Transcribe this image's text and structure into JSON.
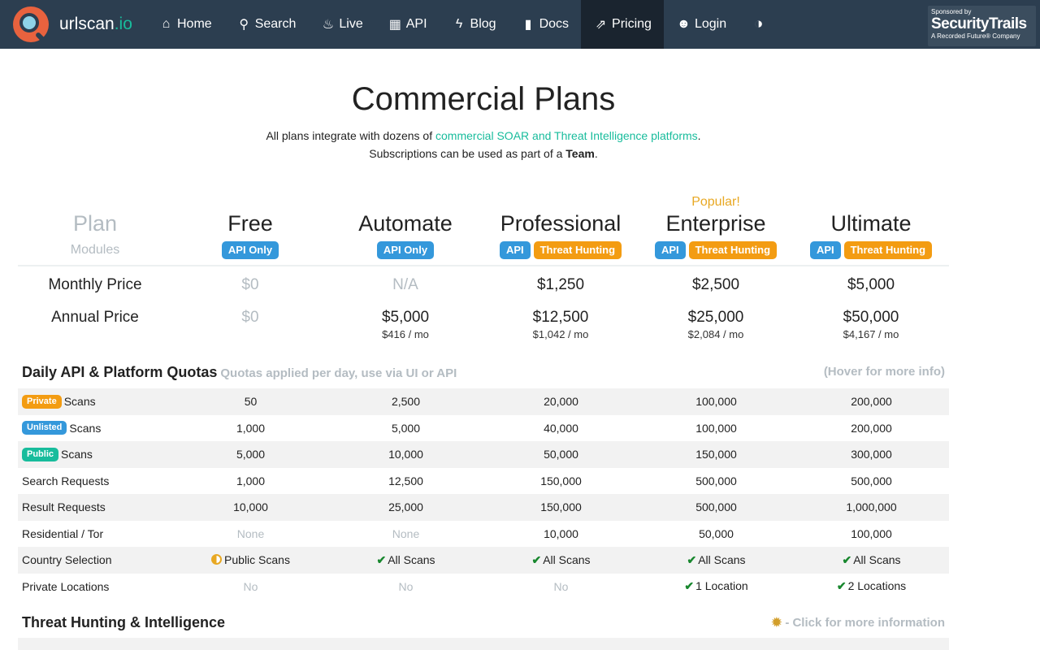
{
  "nav": {
    "brand_main": "urlscan",
    "brand_tld": ".io",
    "items": [
      {
        "label": "Home",
        "icon": "home-icon",
        "glyph": "⌂"
      },
      {
        "label": "Search",
        "icon": "search-icon",
        "glyph": "⚲"
      },
      {
        "label": "Live",
        "icon": "fire-icon",
        "glyph": "♨"
      },
      {
        "label": "API",
        "icon": "qrcode-icon",
        "glyph": "▦"
      },
      {
        "label": "Blog",
        "icon": "bolt-icon",
        "glyph": "ϟ"
      },
      {
        "label": "Docs",
        "icon": "bookmark-icon",
        "glyph": "▮"
      },
      {
        "label": "Pricing",
        "icon": "external-link-icon",
        "glyph": "⇗",
        "active": true
      },
      {
        "label": "Login",
        "icon": "user-icon",
        "glyph": "☻"
      }
    ],
    "theme_toggle_glyph": "◑",
    "sponsor": {
      "line1": "Sponsored by",
      "line2": "SecurityTrails",
      "line3": "A Recorded Future® Company"
    }
  },
  "hero": {
    "title": "Commercial Plans",
    "line1_pre": "All plans integrate with dozens of ",
    "line1_link": "commercial SOAR and Threat Intelligence platforms",
    "line1_post": ".",
    "line2_pre": "Subscriptions can be used as part of a ",
    "line2_bold": "Team",
    "line2_post": "."
  },
  "plans_header": {
    "label": "Plan",
    "modules_label": "Modules",
    "popular": "Popular!",
    "plans": [
      {
        "name": "Free",
        "modules": [
          "API Only"
        ]
      },
      {
        "name": "Automate",
        "modules": [
          "API Only"
        ]
      },
      {
        "name": "Professional",
        "modules": [
          "API",
          "Threat Hunting"
        ]
      },
      {
        "name": "Enterprise",
        "modules": [
          "API",
          "Threat Hunting"
        ]
      },
      {
        "name": "Ultimate",
        "modules": [
          "API",
          "Threat Hunting"
        ]
      }
    ]
  },
  "prices": {
    "monthly_label": "Monthly Price",
    "annual_label": "Annual Price",
    "monthly": [
      "$0",
      "N/A",
      "$1,250",
      "$2,500",
      "$5,000"
    ],
    "annual": [
      "$0",
      "$5,000",
      "$12,500",
      "$25,000",
      "$50,000"
    ],
    "annual_per_month": [
      "",
      "$416 / mo",
      "$1,042 / mo",
      "$2,084 / mo",
      "$4,167 / mo"
    ]
  },
  "quotas": {
    "title": "Daily API & Platform Quotas",
    "note": "Quotas applied per day, use via UI or API",
    "hover_hint": "(Hover for more info)",
    "rows": [
      {
        "badge": "Private",
        "label": "Scans",
        "values": [
          "50",
          "2,500",
          "20,000",
          "100,000",
          "200,000"
        ]
      },
      {
        "badge": "Unlisted",
        "label": "Scans",
        "values": [
          "1,000",
          "5,000",
          "40,000",
          "100,000",
          "200,000"
        ]
      },
      {
        "badge": "Public",
        "label": "Scans",
        "values": [
          "5,000",
          "10,000",
          "50,000",
          "150,000",
          "300,000"
        ]
      },
      {
        "label": "Search Requests",
        "values": [
          "1,000",
          "12,500",
          "150,000",
          "500,000",
          "500,000"
        ]
      },
      {
        "label": "Result Requests",
        "values": [
          "10,000",
          "25,000",
          "150,000",
          "500,000",
          "1,000,000"
        ]
      },
      {
        "label": "Residential / Tor",
        "values": [
          "None",
          "None",
          "10,000",
          "50,000",
          "100,000"
        ]
      },
      {
        "label": "Country Selection",
        "values": [
          "Public Scans",
          "All Scans",
          "All Scans",
          "All Scans",
          "All Scans"
        ]
      },
      {
        "label": "Private Locations",
        "values": [
          "No",
          "No",
          "No",
          "1 Location",
          "2 Locations"
        ]
      }
    ]
  },
  "threat": {
    "title": "Threat Hunting & Intelligence",
    "hint": "- Click for more information",
    "hint_glyph": "✹"
  }
}
